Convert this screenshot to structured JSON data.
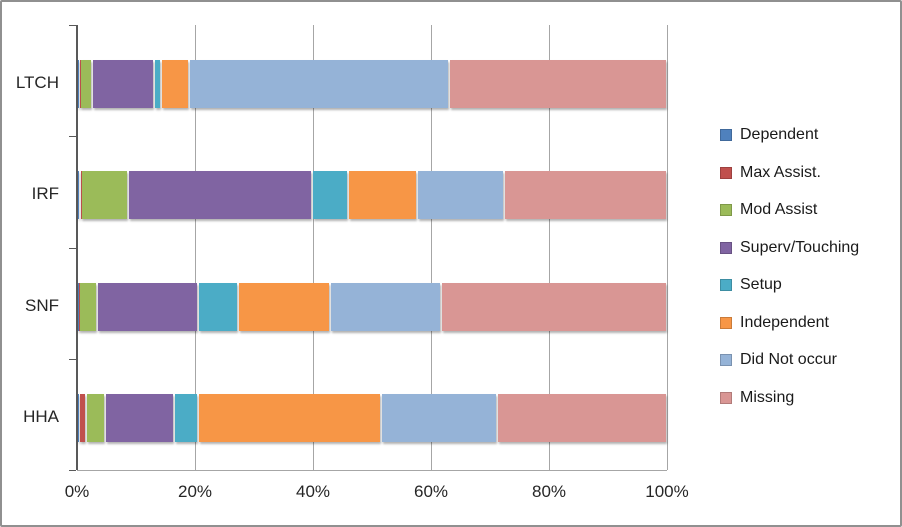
{
  "chart_data": {
    "type": "bar",
    "orientation": "horizontal",
    "stacked": true,
    "title": "",
    "xlabel": "",
    "ylabel": "",
    "xlim": [
      0,
      100
    ],
    "x_tick_labels": [
      "0%",
      "20%",
      "40%",
      "60%",
      "80%",
      "100%"
    ],
    "grid": true,
    "legend_position": "right",
    "categories": [
      "LTCH",
      "IRF",
      "SNF",
      "HHA"
    ],
    "series": [
      {
        "name": "Dependent",
        "color": "#4F81BD",
        "values": [
          0.3,
          0.5,
          0.2,
          0.3
        ]
      },
      {
        "name": "Max Assist.",
        "color": "#C0504D",
        "values": [
          0.2,
          0.1,
          0.2,
          1.2
        ]
      },
      {
        "name": "Mod Assist",
        "color": "#9BBB59",
        "values": [
          2.0,
          8.0,
          3.0,
          3.2
        ]
      },
      {
        "name": "Superv/Touching",
        "color": "#8064A2",
        "values": [
          10.5,
          31.2,
          17.1,
          11.7
        ]
      },
      {
        "name": "Setup",
        "color": "#4BACC6",
        "values": [
          1.3,
          6.2,
          6.8,
          4.1
        ]
      },
      {
        "name": "Independent",
        "color": "#F79646",
        "values": [
          4.7,
          11.6,
          15.6,
          31.0
        ]
      },
      {
        "name": "Did Not occur",
        "color": "#95B3D7",
        "values": [
          44.0,
          14.8,
          18.8,
          19.7
        ]
      },
      {
        "name": "Missing",
        "color": "#D99694",
        "values": [
          37.0,
          27.6,
          38.3,
          28.8
        ]
      }
    ]
  },
  "colors": {
    "axis": "#595959",
    "gridline": "#a6a6a6",
    "tick_text": "#262626",
    "legend_text": "#1a1a1a",
    "frame_border": "#909090",
    "background": "#ffffff"
  }
}
